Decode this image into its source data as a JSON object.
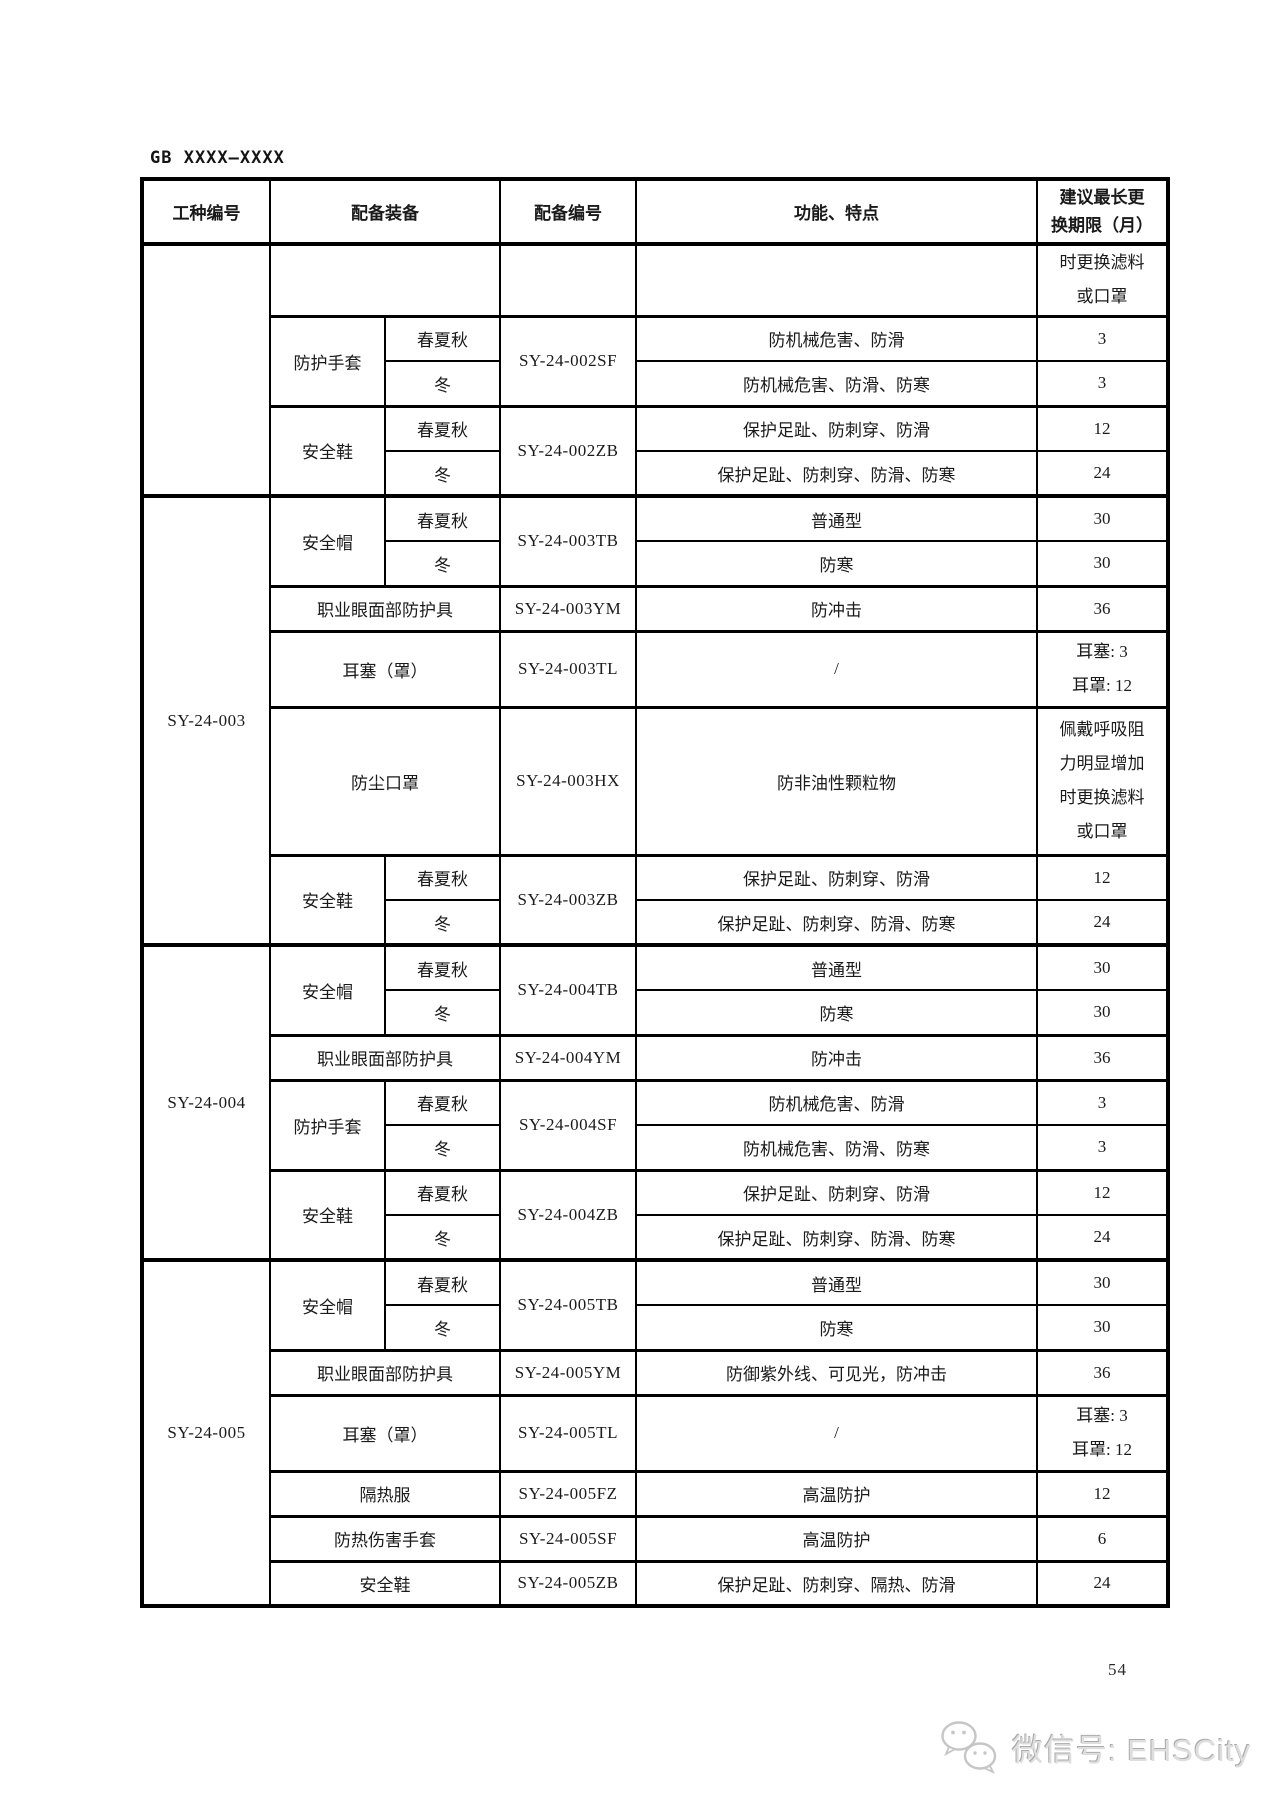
{
  "page": {
    "doc_code": "GB XXXX—XXXX",
    "page_number": "54",
    "footer": {
      "wechat_label": "微信号: EHSCity"
    }
  },
  "colors": {
    "border": "#000000",
    "text": "#1a1a1a",
    "watermark": "#c6c6c6",
    "page_bg": "#ffffff"
  },
  "table": {
    "header_cells": [
      {
        "t": "工种编号"
      },
      {
        "t": "配备装备",
        "cs": 2
      },
      {
        "t": "配备编号"
      },
      {
        "t": "功能、特点"
      },
      {
        "lines": [
          "建议最长更",
          "换期限（月）"
        ]
      }
    ],
    "rows": [
      {
        "h": "cont",
        "sep": "none",
        "cells": [
          {
            "k": "jobno",
            "t": "",
            "rs": 5
          },
          {
            "k": "equipfull",
            "t": "",
            "cs": 2
          },
          {
            "k": "code",
            "t": ""
          },
          {
            "k": "feat",
            "t": ""
          },
          {
            "k": "num",
            "lines": [
              "时更换滤料",
              "或口罩"
            ]
          }
        ]
      },
      {
        "h": "std",
        "sep": "group",
        "cells": [
          {
            "k": "equip",
            "t": "防护手套",
            "rs": 2
          },
          {
            "k": "season",
            "t": "春夏秋"
          },
          {
            "k": "code",
            "t": "SY-24-002SF",
            "rs": 2
          },
          {
            "k": "feat",
            "t": "防机械危害、防滑"
          },
          {
            "k": "num",
            "t": "3"
          }
        ]
      },
      {
        "h": "std",
        "sep": "none",
        "cells": [
          {
            "k": "season",
            "t": "冬"
          },
          {
            "k": "feat",
            "t": "防机械危害、防滑、防寒"
          },
          {
            "k": "num",
            "t": "3"
          }
        ]
      },
      {
        "h": "std",
        "sep": "group",
        "cells": [
          {
            "k": "equip",
            "t": "安全鞋",
            "rs": 2
          },
          {
            "k": "season",
            "t": "春夏秋"
          },
          {
            "k": "code",
            "t": "SY-24-002ZB",
            "rs": 2
          },
          {
            "k": "feat",
            "t": "保护足趾、防刺穿、防滑"
          },
          {
            "k": "num",
            "t": "12"
          }
        ]
      },
      {
        "h": "std",
        "sep": "none",
        "cells": [
          {
            "k": "season",
            "t": "冬"
          },
          {
            "k": "feat",
            "t": "保护足趾、防刺穿、防滑、防寒"
          },
          {
            "k": "num",
            "t": "24"
          }
        ]
      },
      {
        "h": "std",
        "sep": "section",
        "cells": [
          {
            "k": "jobno",
            "t": "SY-24-003",
            "rs": 7
          },
          {
            "k": "equip",
            "t": "安全帽",
            "rs": 2
          },
          {
            "k": "season",
            "t": "春夏秋"
          },
          {
            "k": "code",
            "t": "SY-24-003TB",
            "rs": 2
          },
          {
            "k": "feat",
            "t": "普通型"
          },
          {
            "k": "num",
            "t": "30"
          }
        ]
      },
      {
        "h": "std",
        "sep": "none",
        "cells": [
          {
            "k": "season",
            "t": "冬"
          },
          {
            "k": "feat",
            "t": "防寒"
          },
          {
            "k": "num",
            "t": "30"
          }
        ]
      },
      {
        "h": "std",
        "sep": "group",
        "cells": [
          {
            "k": "equipfull",
            "t": "职业眼面部防护具",
            "cs": 2
          },
          {
            "k": "code",
            "t": "SY-24-003YM"
          },
          {
            "k": "feat",
            "t": "防冲击"
          },
          {
            "k": "num",
            "t": "36"
          }
        ]
      },
      {
        "h": "tall",
        "sep": "group",
        "cells": [
          {
            "k": "equipfull",
            "t": "耳塞（罩）",
            "cs": 2
          },
          {
            "k": "code",
            "t": "SY-24-003TL"
          },
          {
            "k": "feat",
            "t": "/"
          },
          {
            "k": "num",
            "lines": [
              "耳塞: 3",
              "耳罩: 12"
            ]
          }
        ]
      },
      {
        "h": "xtall",
        "sep": "group",
        "cells": [
          {
            "k": "equipfull",
            "t": "防尘口罩",
            "cs": 2
          },
          {
            "k": "code",
            "t": "SY-24-003HX"
          },
          {
            "k": "feat",
            "t": "防非油性颗粒物"
          },
          {
            "k": "num",
            "lines": [
              "佩戴呼吸阻",
              "力明显增加",
              "时更换滤料",
              "或口罩"
            ]
          }
        ]
      },
      {
        "h": "std",
        "sep": "group",
        "cells": [
          {
            "k": "equip",
            "t": "安全鞋",
            "rs": 2
          },
          {
            "k": "season",
            "t": "春夏秋"
          },
          {
            "k": "code",
            "t": "SY-24-003ZB",
            "rs": 2
          },
          {
            "k": "feat",
            "t": "保护足趾、防刺穿、防滑"
          },
          {
            "k": "num",
            "t": "12"
          }
        ]
      },
      {
        "h": "std",
        "sep": "none",
        "cells": [
          {
            "k": "season",
            "t": "冬"
          },
          {
            "k": "feat",
            "t": "保护足趾、防刺穿、防滑、防寒"
          },
          {
            "k": "num",
            "t": "24"
          }
        ]
      },
      {
        "h": "std",
        "sep": "section",
        "cells": [
          {
            "k": "jobno",
            "t": "SY-24-004",
            "rs": 7
          },
          {
            "k": "equip",
            "t": "安全帽",
            "rs": 2
          },
          {
            "k": "season",
            "t": "春夏秋"
          },
          {
            "k": "code",
            "t": "SY-24-004TB",
            "rs": 2
          },
          {
            "k": "feat",
            "t": "普通型"
          },
          {
            "k": "num",
            "t": "30"
          }
        ]
      },
      {
        "h": "std",
        "sep": "none",
        "cells": [
          {
            "k": "season",
            "t": "冬"
          },
          {
            "k": "feat",
            "t": "防寒"
          },
          {
            "k": "num",
            "t": "30"
          }
        ]
      },
      {
        "h": "std",
        "sep": "group",
        "cells": [
          {
            "k": "equipfull",
            "t": "职业眼面部防护具",
            "cs": 2
          },
          {
            "k": "code",
            "t": "SY-24-004YM"
          },
          {
            "k": "feat",
            "t": "防冲击"
          },
          {
            "k": "num",
            "t": "36"
          }
        ]
      },
      {
        "h": "std",
        "sep": "group",
        "cells": [
          {
            "k": "equip",
            "t": "防护手套",
            "rs": 2
          },
          {
            "k": "season",
            "t": "春夏秋"
          },
          {
            "k": "code",
            "t": "SY-24-004SF",
            "rs": 2
          },
          {
            "k": "feat",
            "t": "防机械危害、防滑"
          },
          {
            "k": "num",
            "t": "3"
          }
        ]
      },
      {
        "h": "std",
        "sep": "none",
        "cells": [
          {
            "k": "season",
            "t": "冬"
          },
          {
            "k": "feat",
            "t": "防机械危害、防滑、防寒"
          },
          {
            "k": "num",
            "t": "3"
          }
        ]
      },
      {
        "h": "std",
        "sep": "group",
        "cells": [
          {
            "k": "equip",
            "t": "安全鞋",
            "rs": 2
          },
          {
            "k": "season",
            "t": "春夏秋"
          },
          {
            "k": "code",
            "t": "SY-24-004ZB",
            "rs": 2
          },
          {
            "k": "feat",
            "t": "保护足趾、防刺穿、防滑"
          },
          {
            "k": "num",
            "t": "12"
          }
        ]
      },
      {
        "h": "std",
        "sep": "none",
        "cells": [
          {
            "k": "season",
            "t": "冬"
          },
          {
            "k": "feat",
            "t": "保护足趾、防刺穿、防滑、防寒"
          },
          {
            "k": "num",
            "t": "24"
          }
        ]
      },
      {
        "h": "std",
        "sep": "section",
        "cells": [
          {
            "k": "jobno",
            "t": "SY-24-005",
            "rs": 7
          },
          {
            "k": "equip",
            "t": "安全帽",
            "rs": 2
          },
          {
            "k": "season",
            "t": "春夏秋"
          },
          {
            "k": "code",
            "t": "SY-24-005TB",
            "rs": 2
          },
          {
            "k": "feat",
            "t": "普通型"
          },
          {
            "k": "num",
            "t": "30"
          }
        ]
      },
      {
        "h": "std",
        "sep": "none",
        "cells": [
          {
            "k": "season",
            "t": "冬"
          },
          {
            "k": "feat",
            "t": "防寒"
          },
          {
            "k": "num",
            "t": "30"
          }
        ]
      },
      {
        "h": "std",
        "sep": "group",
        "cells": [
          {
            "k": "equipfull",
            "t": "职业眼面部防护具",
            "cs": 2
          },
          {
            "k": "code",
            "t": "SY-24-005YM"
          },
          {
            "k": "feat",
            "t": "防御紫外线、可见光，防冲击"
          },
          {
            "k": "num",
            "t": "36"
          }
        ]
      },
      {
        "h": "tall",
        "sep": "group",
        "cells": [
          {
            "k": "equipfull",
            "t": "耳塞（罩）",
            "cs": 2
          },
          {
            "k": "code",
            "t": "SY-24-005TL"
          },
          {
            "k": "feat",
            "t": "/"
          },
          {
            "k": "num",
            "lines": [
              "耳塞: 3",
              "耳罩: 12"
            ]
          }
        ]
      },
      {
        "h": "std",
        "sep": "group",
        "cells": [
          {
            "k": "equipfull",
            "t": "隔热服",
            "cs": 2
          },
          {
            "k": "code",
            "t": "SY-24-005FZ"
          },
          {
            "k": "feat",
            "t": "高温防护"
          },
          {
            "k": "num",
            "t": "12"
          }
        ]
      },
      {
        "h": "std",
        "sep": "group",
        "cells": [
          {
            "k": "equipfull",
            "t": "防热伤害手套",
            "cs": 2
          },
          {
            "k": "code",
            "t": "SY-24-005SF"
          },
          {
            "k": "feat",
            "t": "高温防护"
          },
          {
            "k": "num",
            "t": "6"
          }
        ]
      },
      {
        "h": "std",
        "sep": "group",
        "cells": [
          {
            "k": "equipfull",
            "t": "安全鞋",
            "cs": 2
          },
          {
            "k": "code",
            "t": "SY-24-005ZB"
          },
          {
            "k": "feat",
            "t": "保护足趾、防刺穿、隔热、防滑"
          },
          {
            "k": "num",
            "t": "24"
          }
        ]
      }
    ]
  }
}
